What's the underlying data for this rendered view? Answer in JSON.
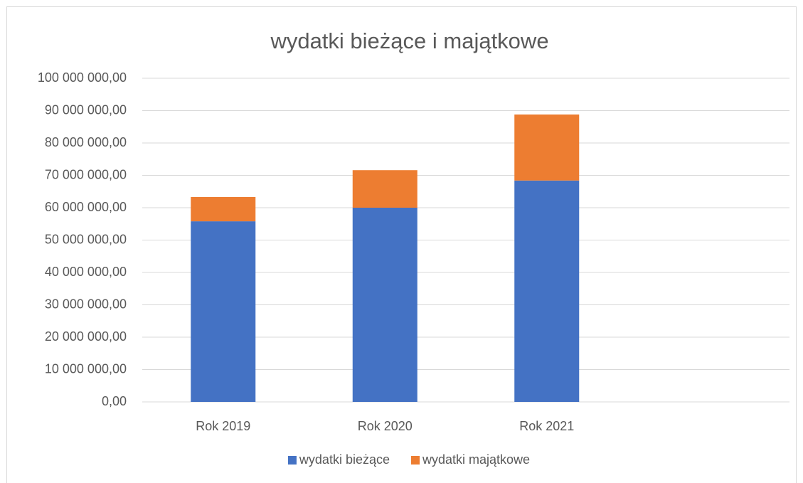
{
  "chart_data": {
    "type": "stacked_bar",
    "title": "wydatki bieżące i majątkowe",
    "categories": [
      "Rok 2019",
      "Rok 2020",
      "Rok 2021",
      null
    ],
    "series": [
      {
        "name": "wydatki bieżące",
        "color": "#4472c4",
        "values": [
          55800000,
          60000000,
          68400000,
          null
        ]
      },
      {
        "name": "wydatki majątkowe",
        "color": "#ed7d31",
        "values": [
          7500000,
          11600000,
          20400000,
          null
        ]
      }
    ],
    "ylim": [
      0,
      100000000
    ],
    "yticks": [
      {
        "value": 0,
        "label": "0,00"
      },
      {
        "value": 10000000,
        "label": "10 000 000,00"
      },
      {
        "value": 20000000,
        "label": "20 000 000,00"
      },
      {
        "value": 30000000,
        "label": "30 000 000,00"
      },
      {
        "value": 40000000,
        "label": "40 000 000,00"
      },
      {
        "value": 50000000,
        "label": "50 000 000,00"
      },
      {
        "value": 60000000,
        "label": "60 000 000,00"
      },
      {
        "value": 70000000,
        "label": "70 000 000,00"
      },
      {
        "value": 80000000,
        "label": "80 000 000,00"
      },
      {
        "value": 90000000,
        "label": "90 000 000,00"
      },
      {
        "value": 100000000,
        "label": "100 000 000,00"
      }
    ],
    "grid": true,
    "legend": "bottom"
  }
}
